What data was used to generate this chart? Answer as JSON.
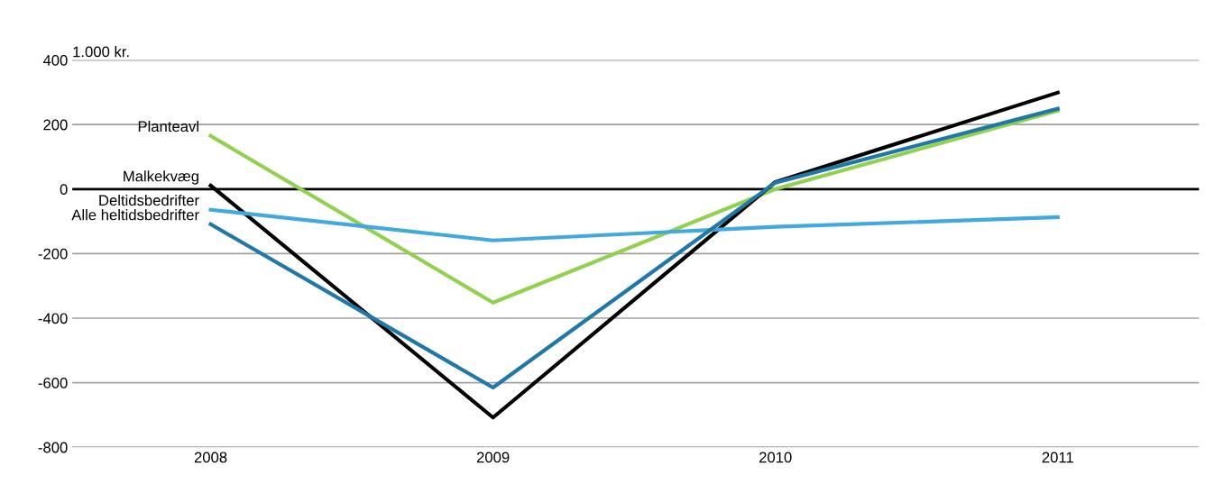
{
  "chart_data": {
    "type": "line",
    "ylabel": "1.000 kr.",
    "categories": [
      "2008",
      "2009",
      "2010",
      "2011"
    ],
    "series": [
      {
        "name": "Planteavl",
        "color": "#92d050",
        "values": [
          165,
          -352,
          0,
          243
        ]
      },
      {
        "name": "Malkekvæg",
        "color": "#000000",
        "values": [
          11,
          -708,
          22,
          299
        ]
      },
      {
        "name": "Deltidsbedrifter",
        "color": "#41a8e0",
        "values": [
          -64,
          -159,
          -117,
          -87
        ]
      },
      {
        "name": "Alle heltidsbedrifter",
        "color": "#1f78a8",
        "values": [
          -109,
          -615,
          20,
          249
        ]
      }
    ],
    "ylim": [
      -800,
      400
    ],
    "yticks": [
      -800,
      -600,
      -400,
      -200,
      0,
      200,
      400
    ],
    "grid": "y",
    "legend": false,
    "marker": "none",
    "line_style": "solid",
    "ref_lines": [
      {
        "axis": "y",
        "value": 0,
        "color": "#000000"
      }
    ]
  }
}
